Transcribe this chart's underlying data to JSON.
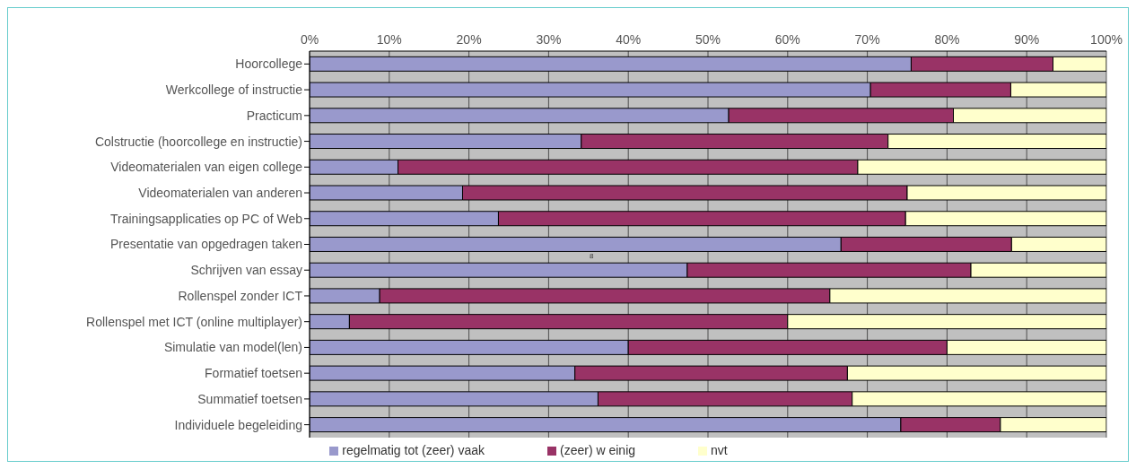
{
  "chart_data": {
    "type": "bar",
    "orientation": "horizontal",
    "stacked": true,
    "categories": [
      "Hoorcollege",
      "Werkcollege of instructie",
      "Practicum",
      "Colstructie (hoorcollege en instructie)",
      "Videomaterialen van eigen college",
      "Videomaterialen van anderen",
      "Trainingsapplicaties op PC of Web",
      "Presentatie van opgedragen taken",
      "Schrijven van essay",
      "Rollenspel zonder ICT",
      "Rollenspel met ICT (online multiplayer)",
      "Simulatie van model(len)",
      "Formatief toetsen",
      "Summatief toetsen",
      "Individuele begeleiding"
    ],
    "series": [
      {
        "name": "regelmatig tot (zeer) vaak",
        "color": "#9999cc",
        "values": [
          75.5,
          70.4,
          52.6,
          34.1,
          11.1,
          19.2,
          23.7,
          66.7,
          47.4,
          8.8,
          5.0,
          40.0,
          33.3,
          36.2,
          74.2
        ]
      },
      {
        "name": "(zeer) w einig",
        "color": "#993366",
        "values": [
          17.8,
          17.6,
          28.2,
          38.5,
          57.7,
          55.8,
          51.1,
          21.4,
          35.6,
          56.5,
          55.0,
          40.0,
          34.2,
          31.9,
          12.5
        ]
      },
      {
        "name": "nvt",
        "color": "#ffffcc",
        "values": [
          6.7,
          12.0,
          19.2,
          27.4,
          31.2,
          25.0,
          25.2,
          11.9,
          17.0,
          34.7,
          40.0,
          20.0,
          32.5,
          31.9,
          13.3
        ]
      }
    ],
    "xlim": [
      0,
      100
    ],
    "xticks": [
      {
        "value": 0,
        "label": "0%"
      },
      {
        "value": 10,
        "label": "10%"
      },
      {
        "value": 20,
        "label": "20%"
      },
      {
        "value": 30,
        "label": "30%"
      },
      {
        "value": 40,
        "label": "40%"
      },
      {
        "value": 50,
        "label": "50%"
      },
      {
        "value": 60,
        "label": "60%"
      },
      {
        "value": 70,
        "label": "70%"
      },
      {
        "value": 80,
        "label": "80%"
      },
      {
        "value": 90,
        "label": "90%"
      },
      {
        "value": 100,
        "label": "100%"
      }
    ],
    "grid": "x",
    "legend": "bottom",
    "annotations": [
      "8"
    ]
  }
}
